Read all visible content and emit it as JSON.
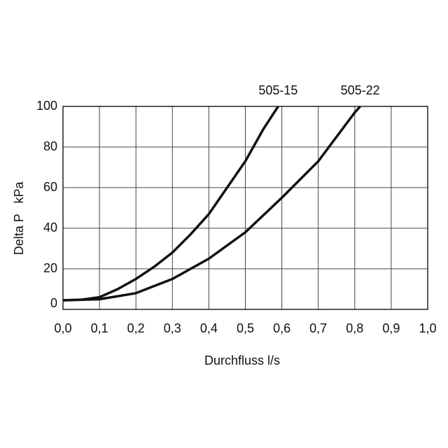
{
  "chart_data": {
    "type": "line",
    "x_label": "Durchfluss l/s",
    "y_label": "Delta P   kPa",
    "xlim": [
      0,
      1
    ],
    "ylim": [
      0,
      100
    ],
    "xticks": [
      {
        "value": 0,
        "label": "0,0"
      },
      {
        "value": 0.1,
        "label": "0,1"
      },
      {
        "value": 0.2,
        "label": "0,2"
      },
      {
        "value": 0.3,
        "label": "0,3"
      },
      {
        "value": 0.4,
        "label": "0,4"
      },
      {
        "value": 0.5,
        "label": "0,5"
      },
      {
        "value": 0.6,
        "label": "0,6"
      },
      {
        "value": 0.7,
        "label": "0,7"
      },
      {
        "value": 0.8,
        "label": "0,8"
      },
      {
        "value": 0.9,
        "label": "0,9"
      },
      {
        "value": 1,
        "label": "1,0"
      }
    ],
    "yticks": [
      0,
      20,
      40,
      60,
      80,
      100
    ],
    "grid": true,
    "series": [
      {
        "name": "505-15",
        "color": "#111111",
        "x": [
          0,
          0.05,
          0.1,
          0.15,
          0.2,
          0.25,
          0.3,
          0.35,
          0.4,
          0.45,
          0.5,
          0.55,
          0.59
        ],
        "values": [
          4.5,
          4.8,
          6,
          10,
          15,
          21,
          28,
          37,
          47,
          60,
          73,
          89,
          100
        ]
      },
      {
        "name": "505-22",
        "color": "#111111",
        "x": [
          0,
          0.1,
          0.2,
          0.3,
          0.4,
          0.5,
          0.6,
          0.7,
          0.8,
          0.815
        ],
        "values": [
          4.5,
          5,
          8,
          15,
          25,
          38,
          55,
          73,
          97,
          100
        ]
      }
    ]
  }
}
